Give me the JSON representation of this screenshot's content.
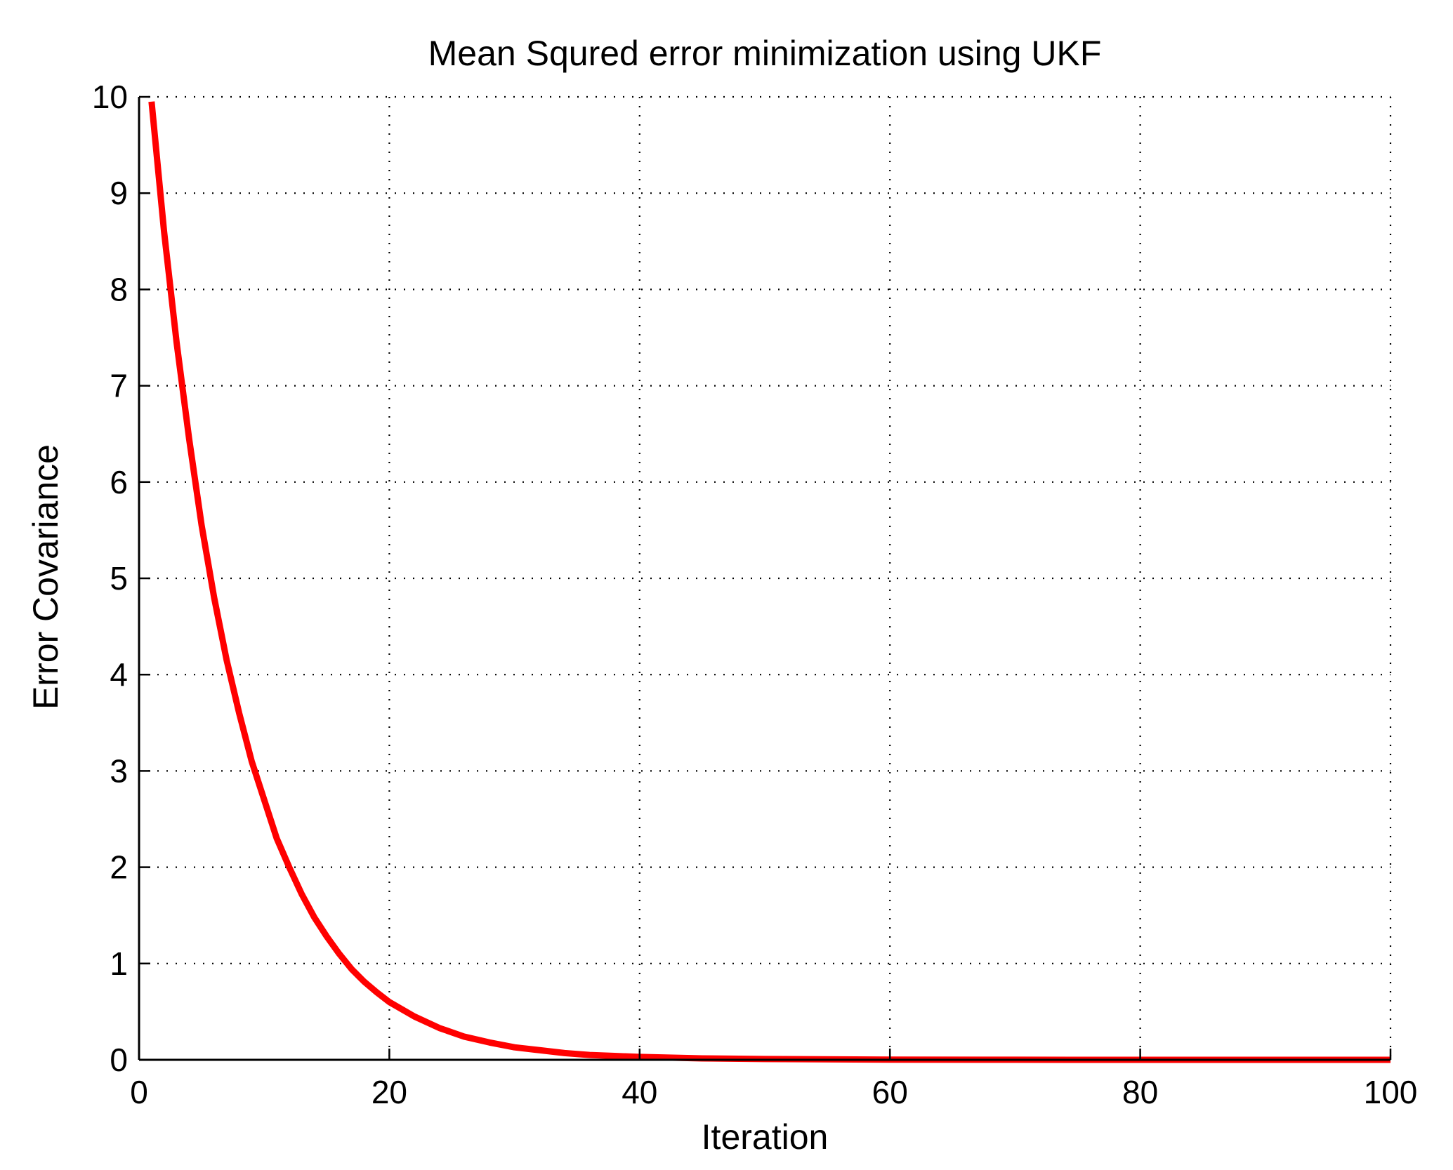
{
  "chart_data": {
    "type": "line",
    "title": "Mean Squred error minimization using UKF",
    "xlabel": "Iteration",
    "ylabel": "Error Covariance",
    "xlim": [
      0,
      100
    ],
    "ylim": [
      0,
      10
    ],
    "x_ticks": [
      0,
      20,
      40,
      60,
      80,
      100
    ],
    "y_ticks": [
      0,
      1,
      2,
      3,
      4,
      5,
      6,
      7,
      8,
      9,
      10
    ],
    "x_tick_labels": [
      "0",
      "20",
      "40",
      "60",
      "80",
      "100"
    ],
    "y_tick_labels": [
      "0",
      "1",
      "2",
      "3",
      "4",
      "5",
      "6",
      "7",
      "8",
      "9",
      "10"
    ],
    "grid": true,
    "series": [
      {
        "color": "#ff0000",
        "x": [
          1,
          2,
          3,
          4,
          5,
          6,
          7,
          8,
          9,
          10,
          11,
          12,
          13,
          14,
          15,
          16,
          17,
          18,
          19,
          20,
          22,
          24,
          26,
          28,
          30,
          32,
          34,
          36,
          38,
          40,
          45,
          50,
          60,
          70,
          80,
          90,
          100
        ],
        "y": [
          9.95,
          8.6,
          7.45,
          6.45,
          5.55,
          4.8,
          4.15,
          3.6,
          3.1,
          2.7,
          2.3,
          2.0,
          1.72,
          1.48,
          1.28,
          1.1,
          0.94,
          0.81,
          0.7,
          0.6,
          0.45,
          0.33,
          0.24,
          0.18,
          0.13,
          0.1,
          0.07,
          0.05,
          0.04,
          0.03,
          0.015,
          0.008,
          0.002,
          0.0005,
          0.0001,
          0.0,
          0.0
        ]
      }
    ]
  }
}
